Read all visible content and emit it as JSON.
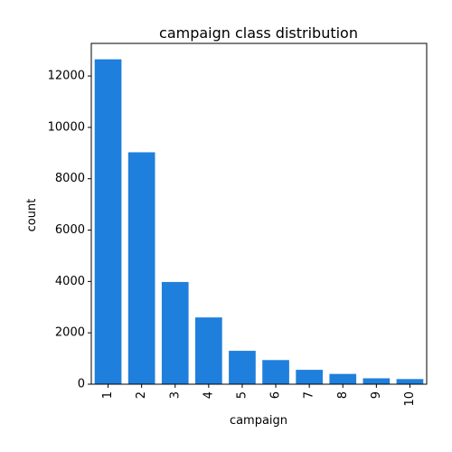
{
  "chart_data": {
    "type": "bar",
    "title": "campaign class distribution",
    "xlabel": "campaign",
    "ylabel": "count",
    "categories": [
      "1",
      "2",
      "3",
      "4",
      "5",
      "6",
      "7",
      "8",
      "9",
      "10"
    ],
    "values": [
      12650,
      9030,
      3980,
      2600,
      1300,
      940,
      560,
      400,
      230,
      200
    ],
    "ylim": [
      0,
      13270
    ],
    "yticks": [
      0,
      2000,
      4000,
      6000,
      8000,
      10000,
      12000
    ],
    "ytick_labels": [
      "0",
      "2000",
      "4000",
      "6000",
      "8000",
      "10000",
      "12000"
    ],
    "bar_color": "#1f7fdc",
    "grid": false,
    "legend": "none"
  }
}
